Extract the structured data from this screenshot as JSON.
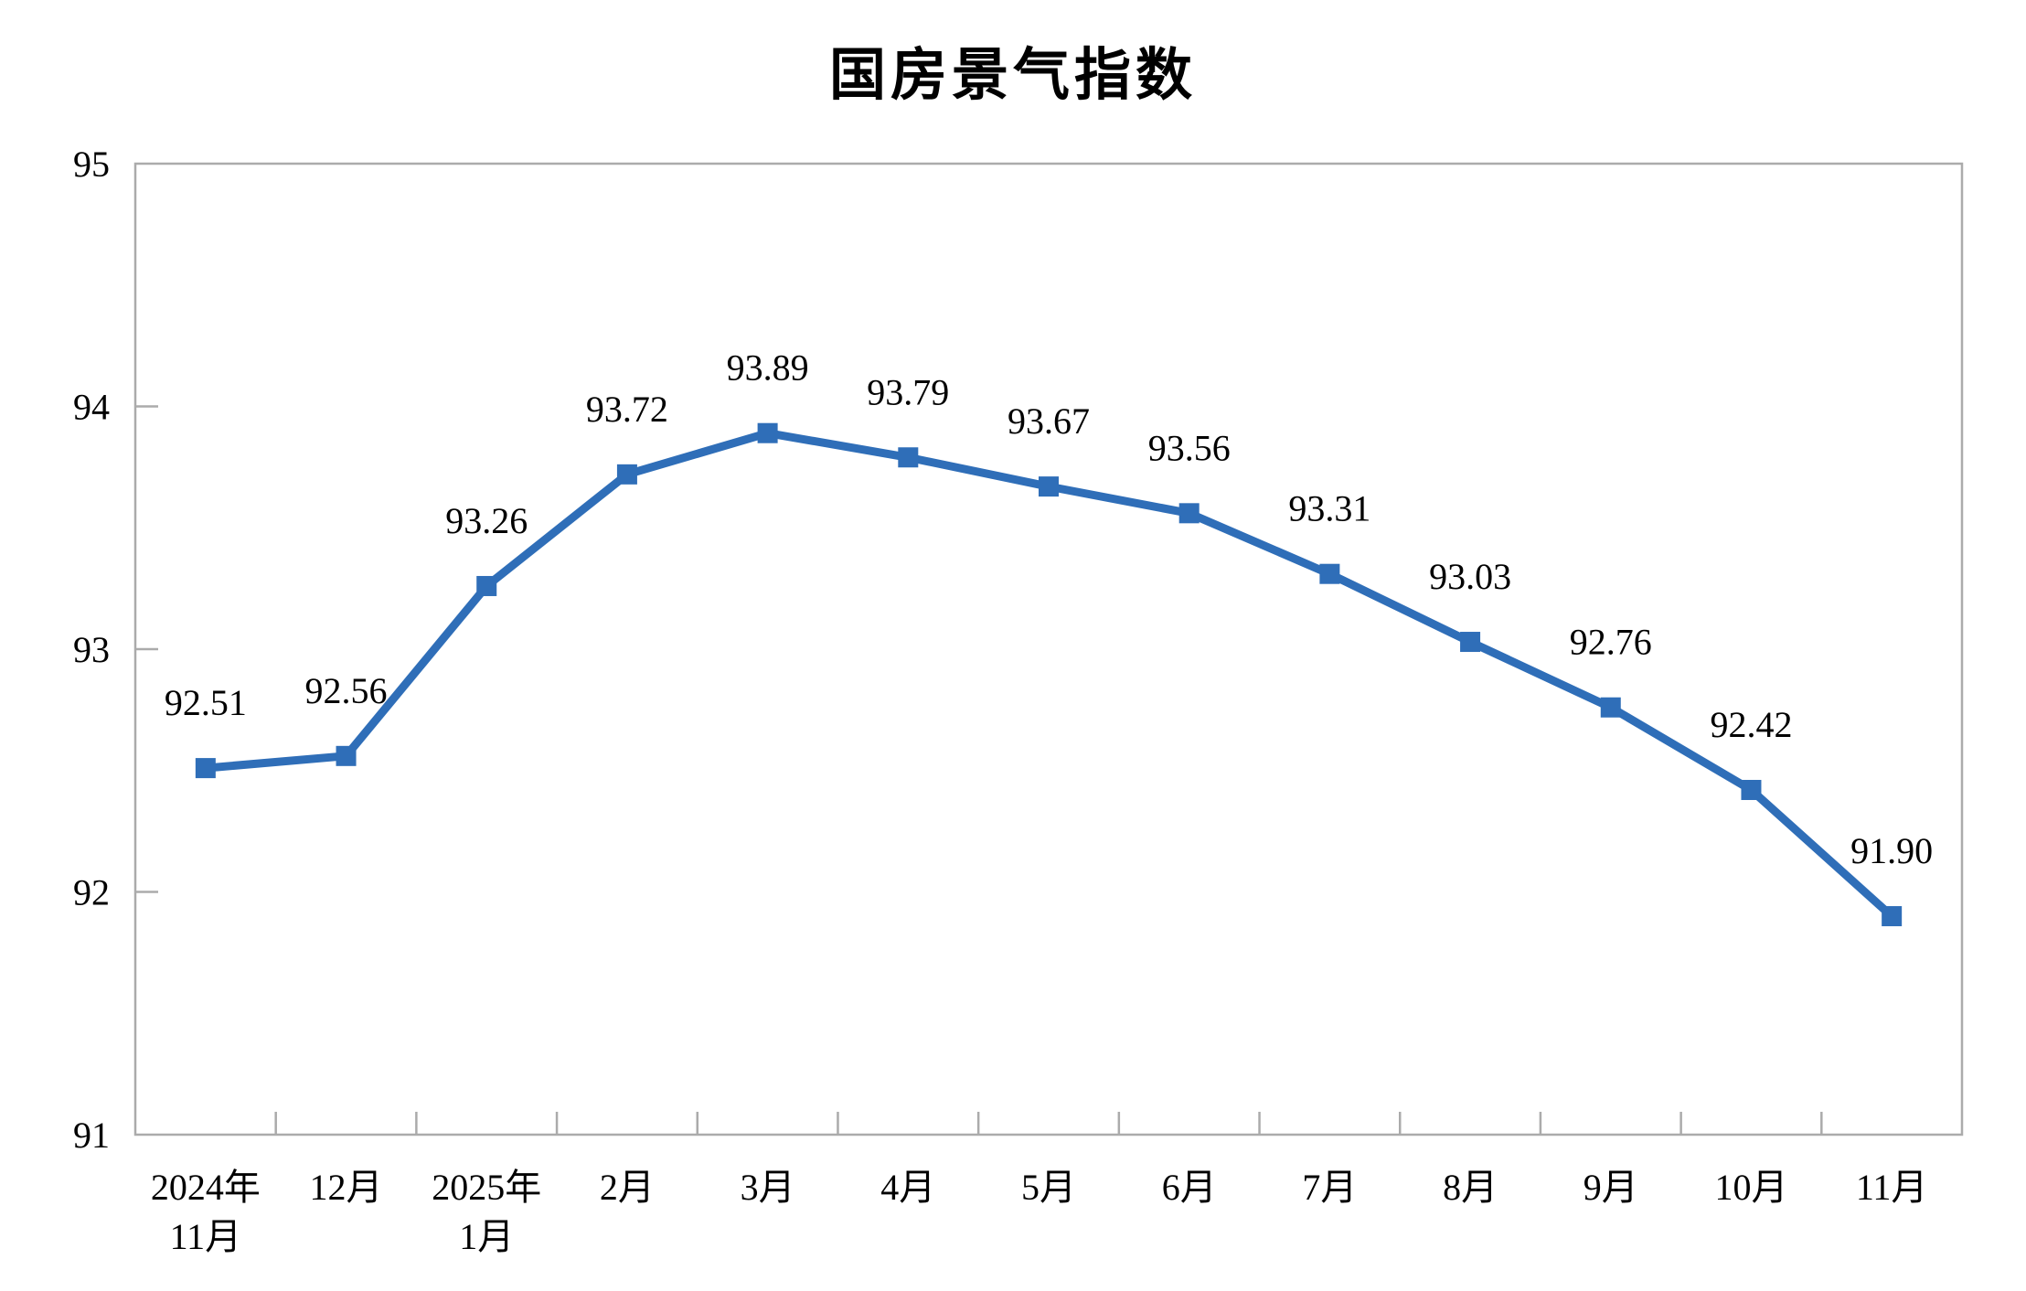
{
  "chart_data": {
    "type": "line",
    "title": "国房景气指数",
    "categories": [
      [
        "2024年",
        "11月"
      ],
      [
        "12月"
      ],
      [
        "2025年",
        "1月"
      ],
      [
        "2月"
      ],
      [
        "3月"
      ],
      [
        "4月"
      ],
      [
        "5月"
      ],
      [
        "6月"
      ],
      [
        "7月"
      ],
      [
        "8月"
      ],
      [
        "9月"
      ],
      [
        "10月"
      ],
      [
        "11月"
      ]
    ],
    "series": [
      {
        "name": "国房景气指数",
        "values": [
          92.51,
          92.56,
          93.26,
          93.72,
          93.89,
          93.79,
          93.67,
          93.56,
          93.31,
          93.03,
          92.76,
          92.42,
          91.9
        ],
        "labels": [
          "92.51",
          "92.56",
          "93.26",
          "93.72",
          "93.89",
          "93.79",
          "93.67",
          "93.56",
          "93.31",
          "93.03",
          "92.76",
          "92.42",
          "91.90"
        ]
      }
    ],
    "xlabel": "",
    "ylabel": "",
    "ylim": [
      91,
      95
    ],
    "yticks": [
      91,
      92,
      93,
      94,
      95
    ],
    "grid": false,
    "legend_position": "none",
    "marker_shape": "square",
    "colors": {
      "line": "#2F6EB8",
      "marker": "#2F6EB8",
      "axis": "#ABABAB",
      "text": "#000000"
    }
  }
}
